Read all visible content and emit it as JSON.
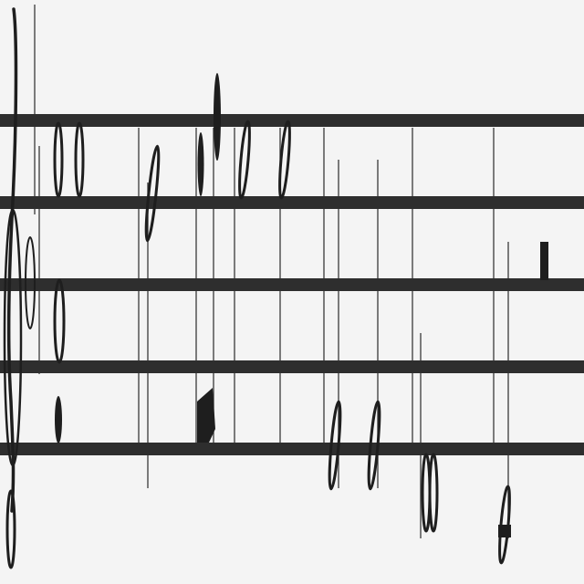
{
  "colors": {
    "background": "#f4f4f4",
    "staff_line": "#2e2e2e",
    "ink": "#1e1e1e"
  },
  "music": {
    "staff_lines": 5,
    "note_count": 14,
    "rest_count": 1
  }
}
